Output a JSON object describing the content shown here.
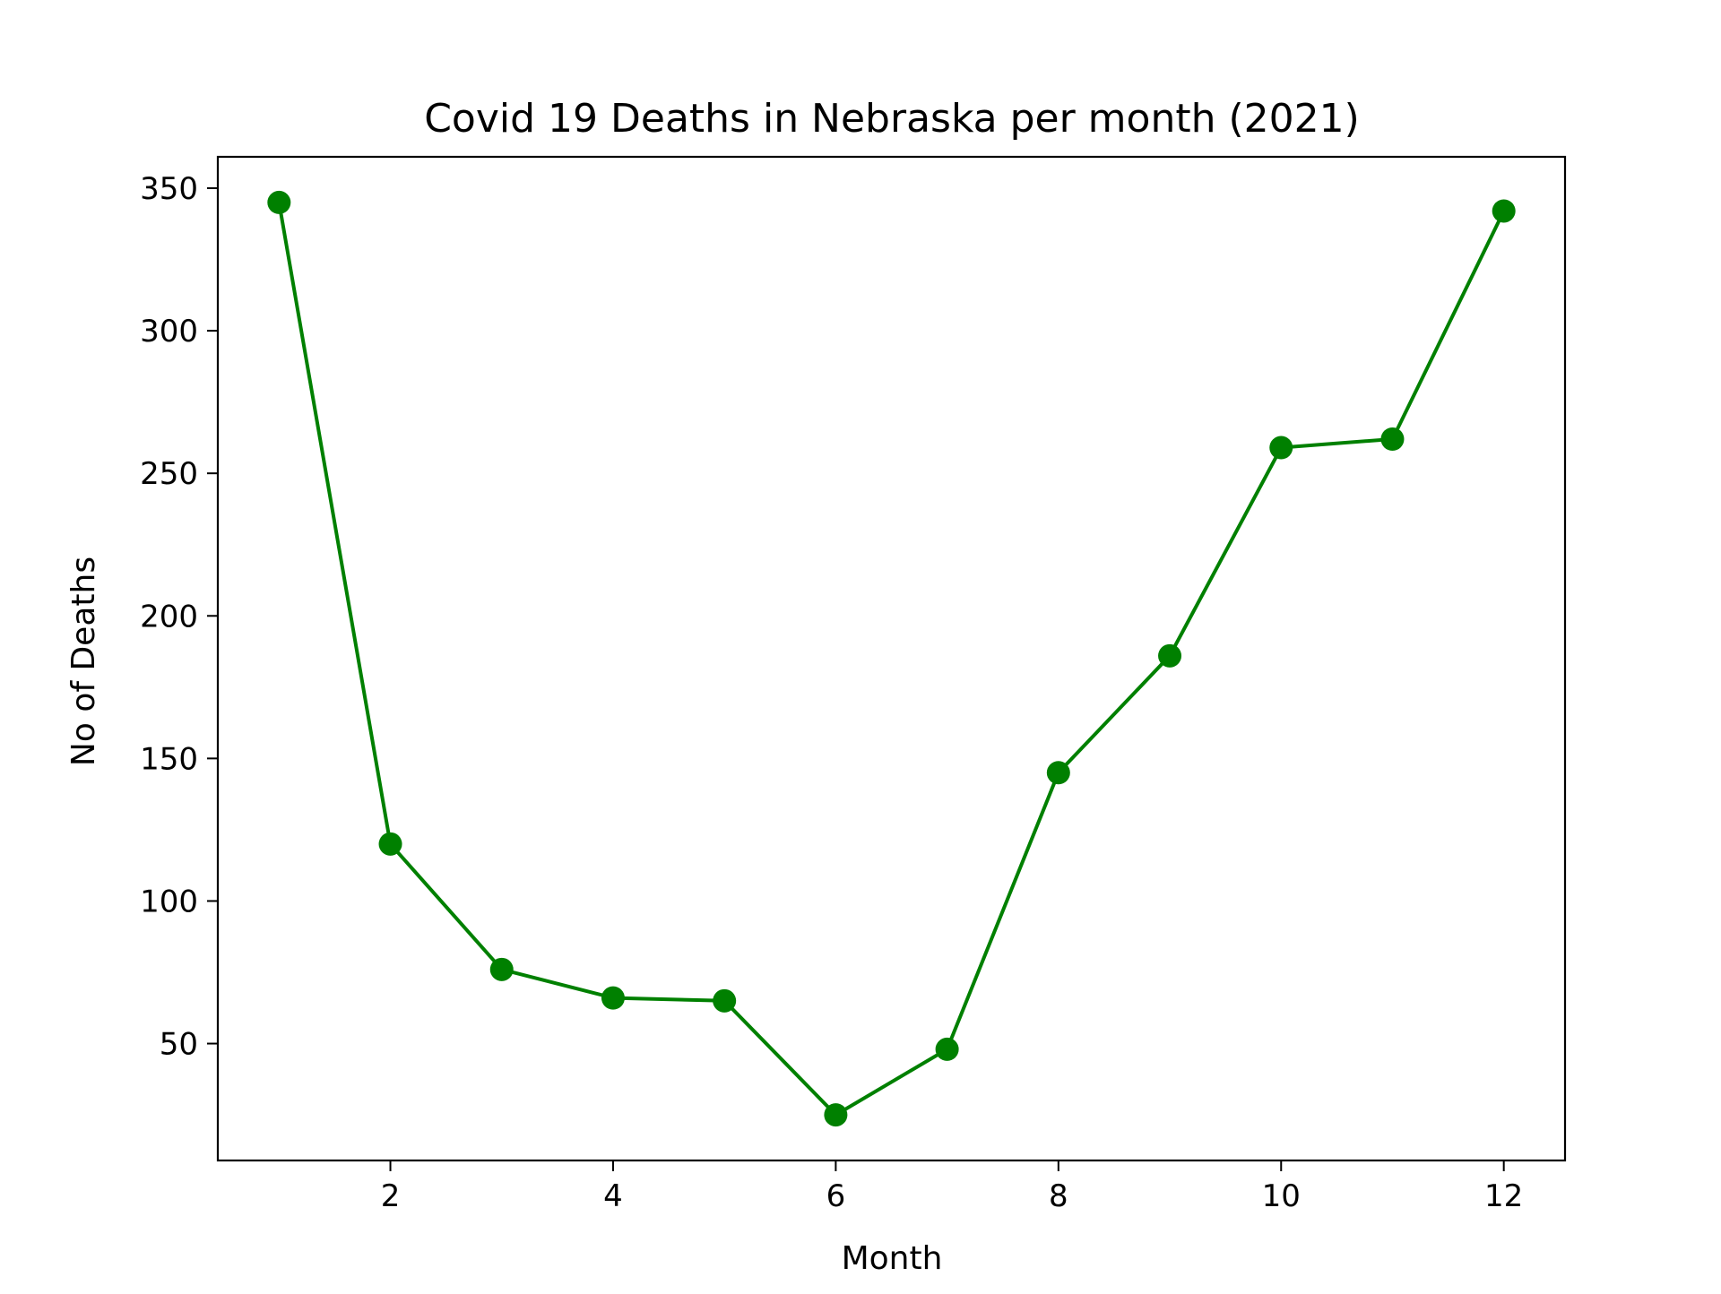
{
  "chart_data": {
    "type": "line",
    "title": "Covid 19 Deaths in Nebraska per month (2021)",
    "xlabel": "Month",
    "ylabel": "No of Deaths",
    "x": [
      1,
      2,
      3,
      4,
      5,
      6,
      7,
      8,
      9,
      10,
      11,
      12
    ],
    "series": [
      {
        "values": [
          345,
          120,
          76,
          66,
          65,
          25,
          48,
          145,
          186,
          259,
          262,
          342
        ],
        "color": "#008000",
        "marker": "circle"
      }
    ],
    "xlim": [
      0.45,
      12.55
    ],
    "ylim": [
      9,
      361
    ],
    "xticks": [
      2,
      4,
      6,
      8,
      10,
      12
    ],
    "yticks": [
      50,
      100,
      150,
      200,
      250,
      300,
      350
    ],
    "grid": false,
    "legend": "none"
  }
}
